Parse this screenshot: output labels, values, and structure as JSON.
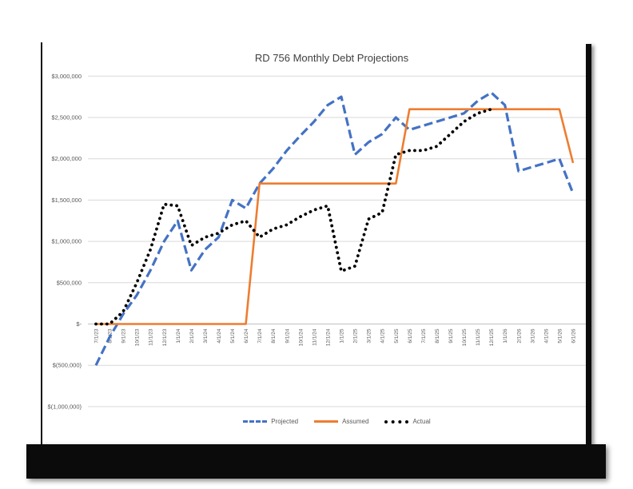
{
  "chart_data": {
    "type": "line",
    "title": "RD 756 Monthly Debt Projections",
    "grid": true,
    "legend_position": "bottom",
    "categories": [
      "7/1/23",
      "8/1/23",
      "9/1/23",
      "10/1/23",
      "11/1/23",
      "12/1/23",
      "1/1/24",
      "2/1/24",
      "3/1/24",
      "4/1/24",
      "5/1/24",
      "6/1/24",
      "7/1/24",
      "8/1/24",
      "9/1/24",
      "10/1/24",
      "11/1/24",
      "12/1/24",
      "1/1/25",
      "2/1/25",
      "3/1/25",
      "4/1/25",
      "5/1/25",
      "6/1/25",
      "7/1/25",
      "8/1/25",
      "9/1/25",
      "10/1/25",
      "11/1/25",
      "12/1/25",
      "1/1/26",
      "2/1/26",
      "3/1/26",
      "4/1/26",
      "5/1/26",
      "6/1/26"
    ],
    "y_axis": {
      "min": -1000000,
      "max": 3000000,
      "step": 500000,
      "ticks": [
        {
          "value": 3000000,
          "label": "$3,000,000"
        },
        {
          "value": 2500000,
          "label": "$2,500,000"
        },
        {
          "value": 2000000,
          "label": "$2,000,000"
        },
        {
          "value": 1500000,
          "label": "$1,500,000"
        },
        {
          "value": 1000000,
          "label": "$1,000,000"
        },
        {
          "value": 500000,
          "label": "$500,000"
        },
        {
          "value": 0,
          "label": "$-"
        },
        {
          "value": -500000,
          "label": "$(500,000)"
        },
        {
          "value": -1000000,
          "label": "$(1,000,000)"
        }
      ]
    },
    "series": [
      {
        "name": "Projected",
        "color": "#4472C4",
        "line_style": "dashed",
        "values": [
          -500000,
          -160000,
          120000,
          350000,
          650000,
          1000000,
          1250000,
          650000,
          900000,
          1050000,
          1500000,
          1400000,
          1700000,
          1880000,
          2100000,
          2280000,
          2450000,
          2650000,
          2750000,
          2050000,
          2200000,
          2300000,
          2500000,
          2350000,
          2400000,
          2450000,
          2500000,
          2550000,
          2700000,
          2800000,
          2650000,
          1850000,
          1900000,
          1950000,
          2000000,
          1580000
        ]
      },
      {
        "name": "Assumed",
        "color": "#ED7D31",
        "line_style": "solid",
        "values": [
          0,
          0,
          0,
          0,
          0,
          0,
          0,
          0,
          0,
          0,
          0,
          0,
          1700000,
          1700000,
          1700000,
          1700000,
          1700000,
          1700000,
          1700000,
          1700000,
          1700000,
          1700000,
          1700000,
          2600000,
          2600000,
          2600000,
          2600000,
          2600000,
          2600000,
          2600000,
          2600000,
          2600000,
          2600000,
          2600000,
          2600000,
          1950000
        ]
      },
      {
        "name": "Actual",
        "color": "#000000",
        "line_style": "dotted",
        "values": [
          0,
          0,
          150000,
          500000,
          900000,
          1450000,
          1430000,
          950000,
          1050000,
          1100000,
          1200000,
          1250000,
          1050000,
          1150000,
          1200000,
          1300000,
          1380000,
          1430000,
          640000,
          700000,
          1270000,
          1350000,
          2050000,
          2100000,
          2100000,
          2150000,
          2300000,
          2450000,
          2550000,
          2600000,
          null,
          null,
          null,
          null,
          null,
          null
        ]
      }
    ],
    "colors": {
      "gridline": "#D9D9D9",
      "axis_line": "#BFBFBF",
      "axis_text": "#595959",
      "title_text": "#404040"
    }
  }
}
